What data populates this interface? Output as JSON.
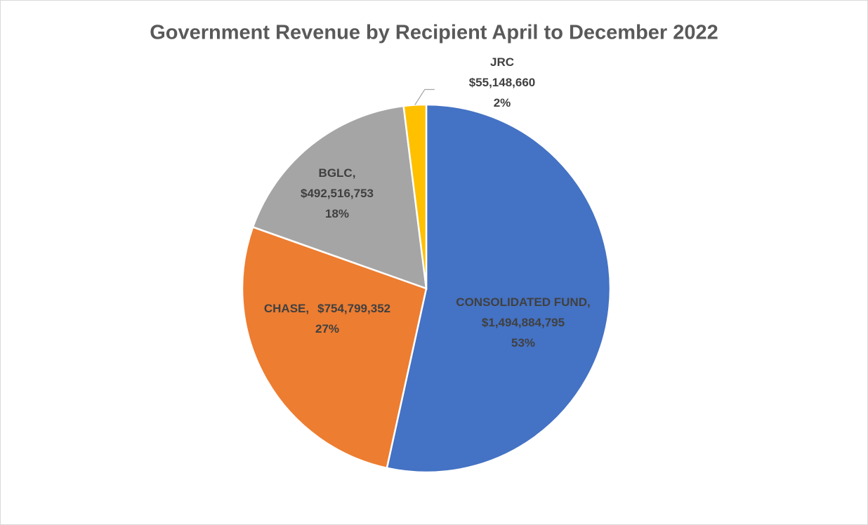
{
  "chart_data": {
    "type": "pie",
    "title": "Government Revenue by Recipient April to December 2022",
    "categories": [
      "CONSOLIDATED FUND,",
      "CHASE,",
      "BGLC,",
      "JRC"
    ],
    "values": [
      1494884795,
      754799352,
      492516753,
      55148660
    ],
    "value_labels": [
      "$1,494,884,795",
      "$754,799,352",
      "$492,516,753",
      "$55,148,660"
    ],
    "percent_labels": [
      "53%",
      "27%",
      "18%",
      "2%"
    ],
    "colors": [
      "#4472c4",
      "#ed7d31",
      "#a5a5a5",
      "#ffc000"
    ]
  }
}
